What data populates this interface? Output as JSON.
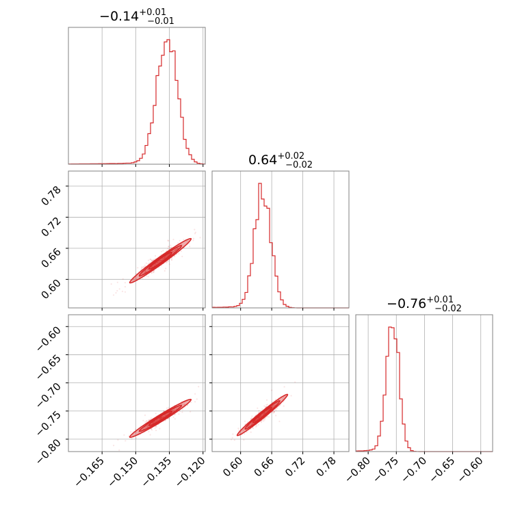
{
  "chart_data": {
    "type": "corner",
    "color": "#d62728",
    "grid": true,
    "parameters": [
      {
        "median": "−0.14",
        "plus": "+0.01",
        "minus": "−0.01",
        "range": [
          -0.18,
          -0.119
        ],
        "ticks": [
          -0.165,
          -0.15,
          -0.135,
          -0.12
        ],
        "tick_labels": [
          "−0.165",
          "−0.150",
          "−0.135",
          "−0.120"
        ],
        "hist_mode": -0.136,
        "hist_sd": 0.0045
      },
      {
        "median": "0.64",
        "plus": "+0.02",
        "minus": "−0.02",
        "range": [
          0.545,
          0.809
        ],
        "ticks": [
          0.6,
          0.66,
          0.72,
          0.78
        ],
        "tick_labels": [
          "0.60",
          "0.66",
          "0.72",
          "0.78"
        ],
        "hist_mode": 0.643,
        "hist_sd": 0.016
      },
      {
        "median": "−0.76",
        "plus": "+0.01",
        "minus": "−0.02",
        "range": [
          -0.822,
          -0.579
        ],
        "ticks": [
          -0.8,
          -0.75,
          -0.7,
          -0.65,
          -0.6
        ],
        "tick_labels": [
          "−0.80",
          "−0.75",
          "−0.70",
          "−0.65",
          "−0.60"
        ],
        "hist_mode": -0.757,
        "hist_sd": 0.011
      }
    ],
    "contours": [
      {
        "row": 1,
        "col": 0,
        "center": [
          -0.139,
          0.636
        ],
        "spread": [
          0.0045,
          0.014
        ]
      },
      {
        "row": 2,
        "col": 0,
        "center": [
          -0.139,
          -0.763
        ],
        "spread": [
          0.0045,
          0.011
        ]
      },
      {
        "row": 2,
        "col": 1,
        "center": [
          0.642,
          -0.757
        ],
        "spread": [
          0.016,
          0.012
        ]
      }
    ]
  }
}
